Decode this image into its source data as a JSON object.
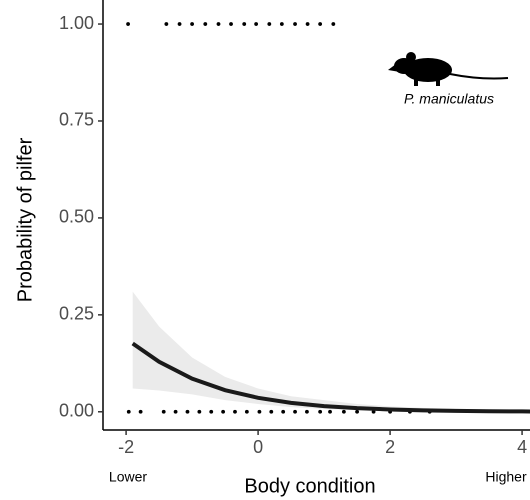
{
  "chart_data": {
    "type": "logistic",
    "y_label": "Probability of pilfer",
    "x_label": "Body condition",
    "x_low_label": "Lower",
    "x_high_label": "Higher",
    "annotation": "P. maniculatus",
    "xlim": [
      -2.35,
      4.12
    ],
    "ylim": [
      -0.047,
      1.062
    ],
    "xticks": [
      -2,
      0,
      2,
      4
    ],
    "yticks": [
      {
        "value": 0,
        "label": "0.00"
      },
      {
        "value": 0.25,
        "label": "0.25"
      },
      {
        "value": 0.5,
        "label": "0.50"
      },
      {
        "value": 0.75,
        "label": "0.75"
      },
      {
        "value": 1,
        "label": "1.00"
      }
    ],
    "series": [
      {
        "type": "scatter",
        "color": "#000000",
        "x": [
          -1.97,
          -1.39,
          -1.19,
          -1.0,
          -0.8,
          -0.6,
          -0.41,
          -0.21,
          -0.03,
          0.17,
          0.36,
          0.56,
          0.75,
          0.94,
          1.14
        ],
        "values": [
          1,
          1,
          1,
          1,
          1,
          1,
          1,
          1,
          1,
          1,
          1,
          1,
          1,
          1,
          1
        ]
      },
      {
        "type": "scatter",
        "color": "#000000",
        "x": [
          -1.96,
          -1.78,
          -1.43,
          -1.25,
          -1.07,
          -0.89,
          -0.71,
          -0.53,
          -0.35,
          -0.17,
          0.02,
          0.2,
          0.38,
          0.56,
          0.74,
          0.94,
          1.09,
          1.3,
          1.5,
          1.75,
          2.0,
          2.3,
          2.6
        ],
        "values": [
          0,
          0,
          0,
          0,
          0,
          0,
          0,
          0,
          0,
          0,
          0,
          0,
          0,
          0,
          0,
          0,
          0,
          0,
          0,
          0,
          0,
          0,
          0
        ]
      },
      {
        "type": "line",
        "color": "#1a1a1a",
        "band_color": "#ebebeb",
        "x": [
          -1.9,
          -1.5,
          -1,
          -0.5,
          0,
          0.5,
          1,
          1.5,
          2,
          2.5,
          3,
          3.5,
          4,
          4.12
        ],
        "values": [
          0.176,
          0.129,
          0.0855,
          0.0557,
          0.036,
          0.023,
          0.0146,
          0.0093,
          0.0059,
          0.0037,
          0.0024,
          0.0015,
          0.0009,
          0.0008
        ],
        "upper": [
          0.31,
          0.22,
          0.14,
          0.09,
          0.06,
          0.04,
          0.03,
          0.02,
          0.014,
          0.01,
          0.007,
          0.005,
          0.004,
          0.004
        ],
        "lower": [
          0.06,
          0.055,
          0.045,
          0.03,
          0.02,
          0.012,
          0.007,
          0.004,
          0.002,
          0.001,
          0.0005,
          0.0003,
          0.0002,
          0.0002
        ]
      }
    ]
  }
}
